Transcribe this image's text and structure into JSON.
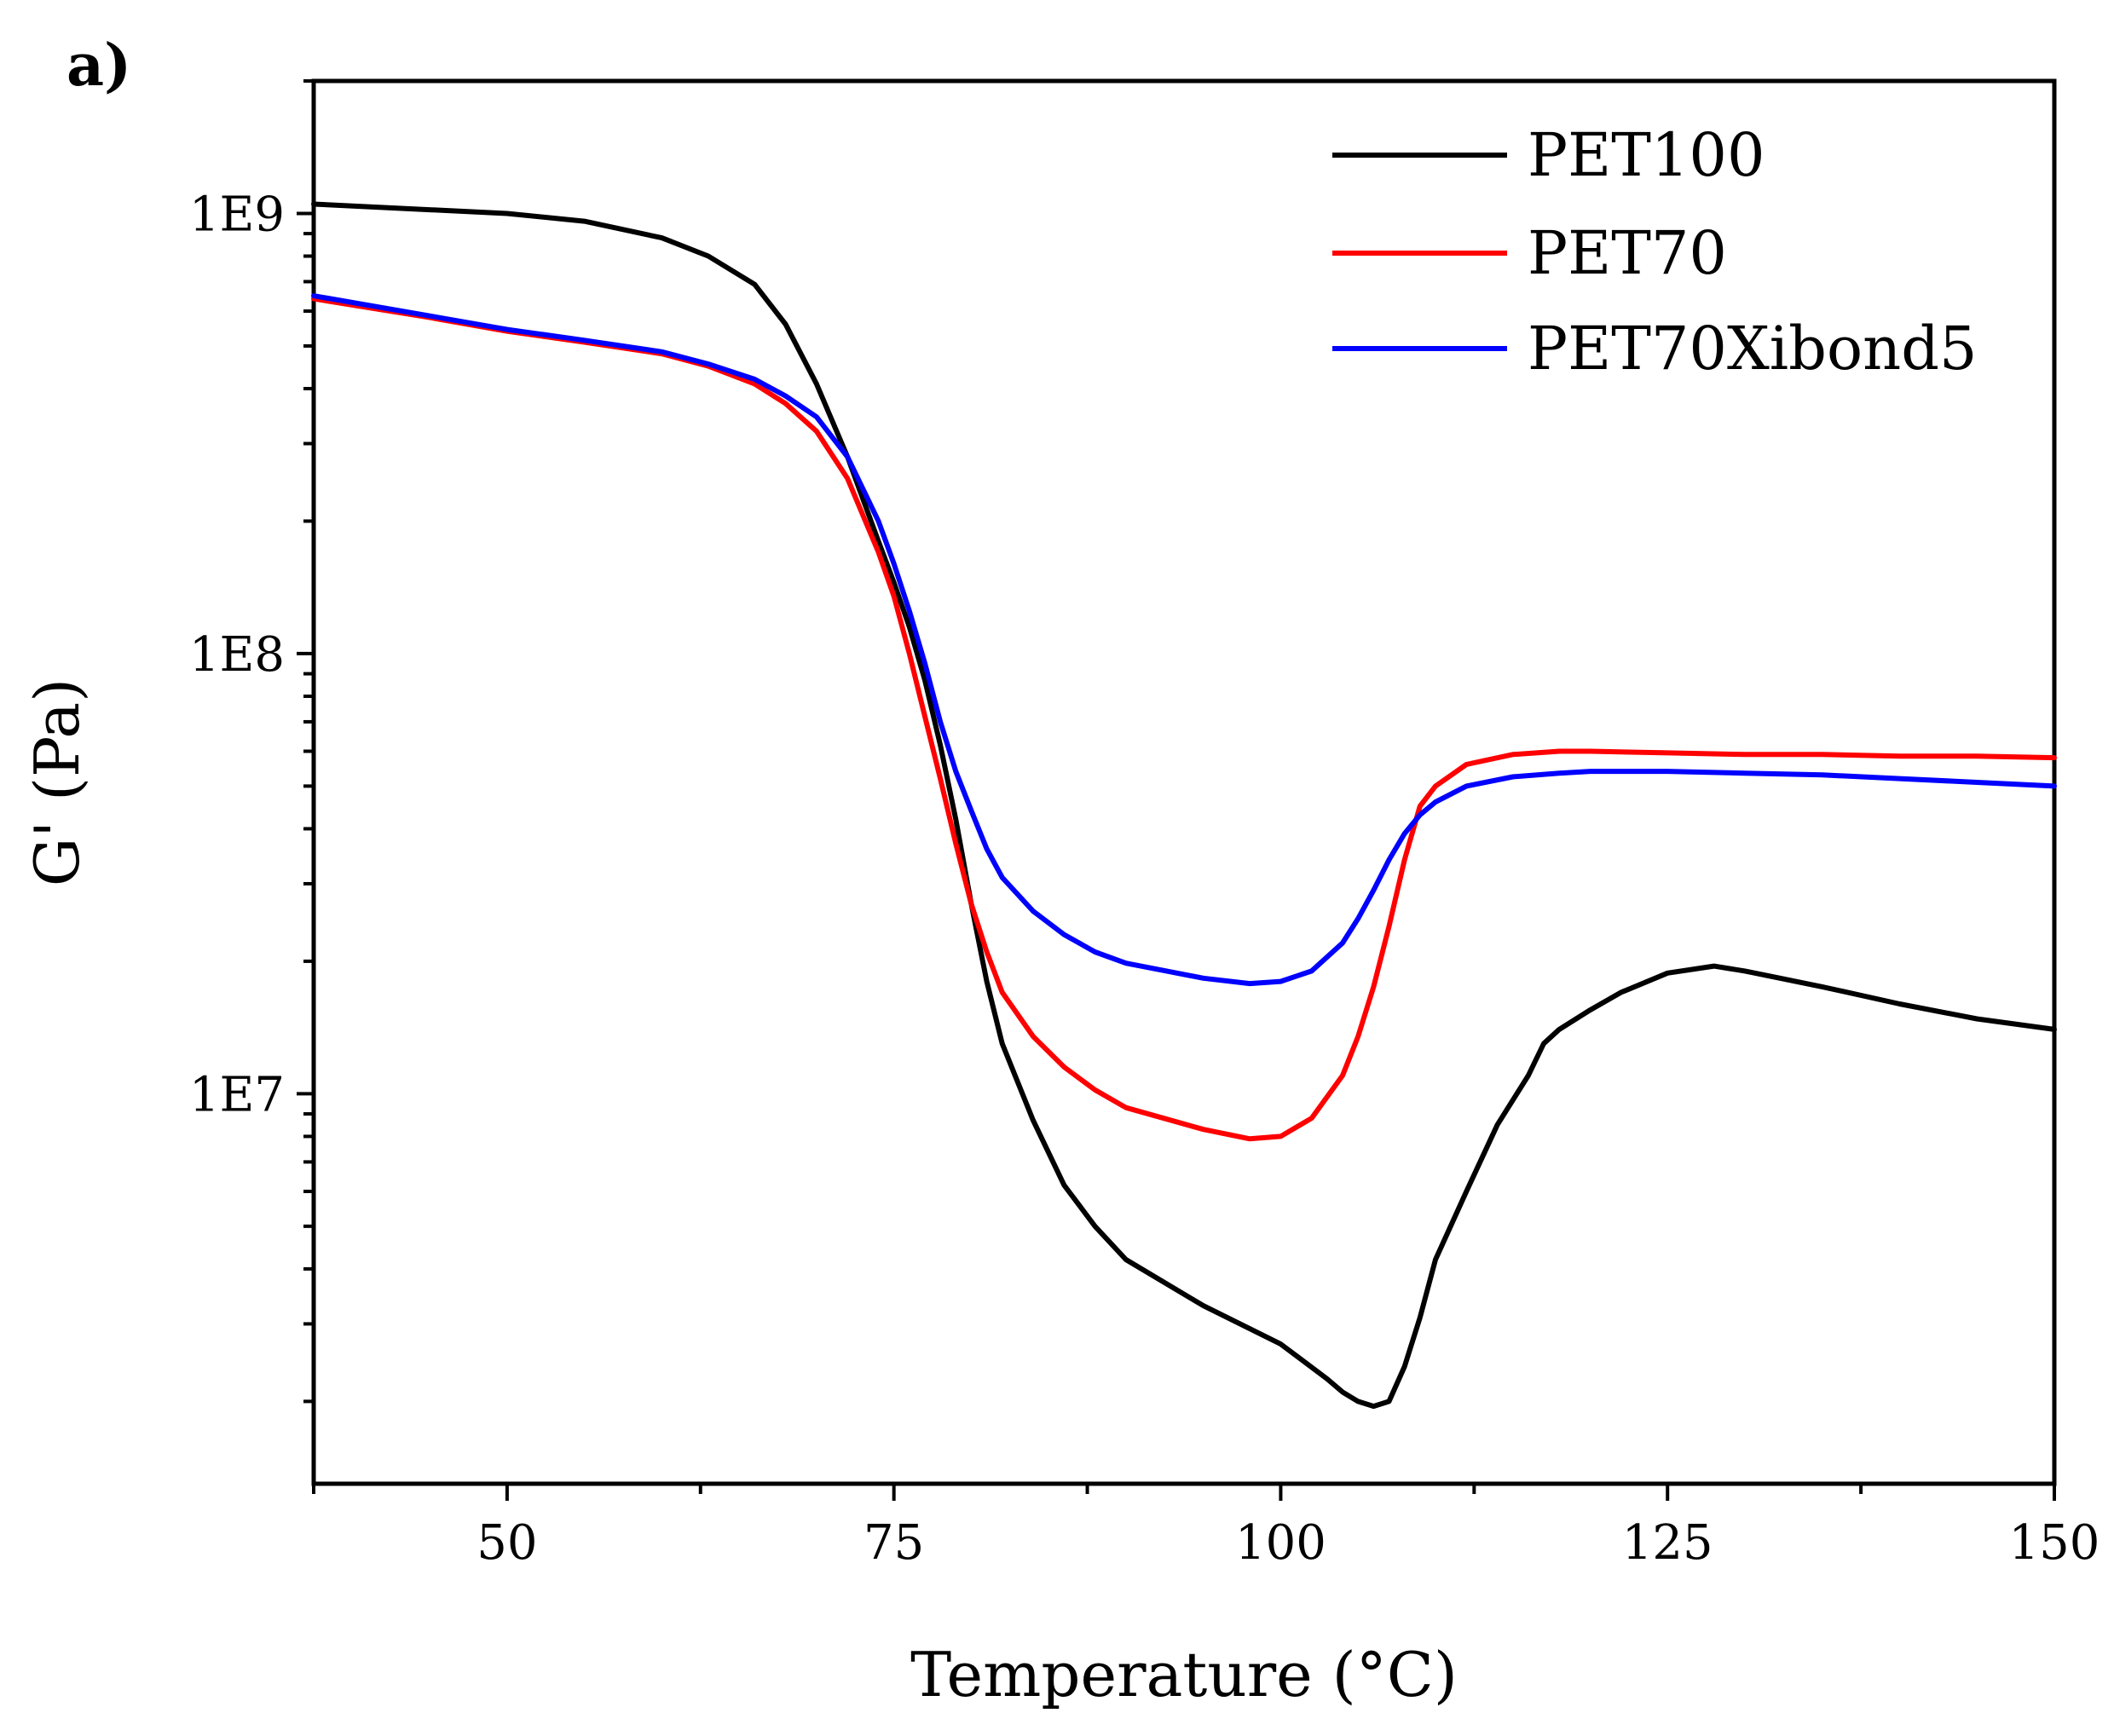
{
  "chart_data": {
    "type": "line",
    "panel_label": "a)",
    "title": "",
    "xlabel": "Temperature (°C)",
    "ylabel": "G' (Pa)",
    "yscale": "log",
    "xlim": [
      37.5,
      150
    ],
    "ylim": [
      1300000,
      2000000000
    ],
    "xticks": [
      50,
      75,
      100,
      125,
      150
    ],
    "xtick_labels": [
      "50",
      "75",
      "100",
      "125",
      "150"
    ],
    "yticks": [
      10000000,
      100000000,
      1000000000
    ],
    "ytick_labels": [
      "1E7",
      "1E8",
      "1E9"
    ],
    "grid": false,
    "legend_position": "top-right",
    "series": [
      {
        "name": "PET100",
        "color": "#000000",
        "x": [
          37.5,
          50,
          55,
          60,
          63,
          66,
          68,
          70,
          72,
          74,
          75,
          76,
          77,
          78,
          79,
          80,
          81,
          82,
          84,
          86,
          88,
          90,
          95,
          100,
          103,
          104,
          105,
          106,
          107,
          108,
          109,
          110,
          112,
          114,
          116,
          117,
          118,
          120,
          122,
          125,
          128,
          130,
          135,
          140,
          145,
          150
        ],
        "y": [
          1050000000,
          1000000000,
          960000000,
          880000000,
          800000000,
          690000000,
          560000000,
          410000000,
          280000000,
          180000000,
          145000000,
          115000000,
          87000000,
          62000000,
          42000000,
          27000000,
          18000000,
          13000000,
          8700000,
          6200000,
          5000000,
          4200000,
          3300000,
          2700000,
          2250000,
          2100000,
          2000000,
          1950000,
          2000000,
          2400000,
          3100000,
          4200000,
          6000000,
          8500000,
          11000000,
          13000000,
          14000000,
          15500000,
          17000000,
          18800000,
          19500000,
          19000000,
          17500000,
          16000000,
          14800000,
          14000000
        ]
      },
      {
        "name": "PET70",
        "color": "#ff0000",
        "x": [
          37.5,
          45,
          50,
          55,
          60,
          63,
          66,
          68,
          70,
          72,
          74,
          75,
          76,
          77,
          78,
          79,
          80,
          81,
          82,
          84,
          86,
          88,
          90,
          95,
          98,
          100,
          102,
          104,
          105,
          106,
          107,
          108,
          109,
          110,
          112,
          115,
          118,
          120,
          125,
          130,
          135,
          140,
          145,
          150
        ],
        "y": [
          640000000,
          580000000,
          540000000,
          510000000,
          480000000,
          450000000,
          410000000,
          370000000,
          320000000,
          250000000,
          170000000,
          135000000,
          100000000,
          72000000,
          52000000,
          37000000,
          27000000,
          21000000,
          17000000,
          13500000,
          11500000,
          10200000,
          9300000,
          8300000,
          7900000,
          8000000,
          8800000,
          11000000,
          13500000,
          17500000,
          24000000,
          34000000,
          45000000,
          50000000,
          56000000,
          59000000,
          60000000,
          60000000,
          59500000,
          59000000,
          59000000,
          58500000,
          58500000,
          58000000
        ]
      },
      {
        "name": "PET70Xibond5",
        "color": "#0000ff",
        "x": [
          37.5,
          45,
          50,
          55,
          60,
          63,
          66,
          68,
          70,
          72,
          74,
          75,
          76,
          77,
          78,
          79,
          80,
          81,
          82,
          84,
          86,
          88,
          90,
          95,
          98,
          100,
          102,
          104,
          105,
          106,
          107,
          108,
          109,
          110,
          112,
          115,
          118,
          120,
          125,
          130,
          135,
          140,
          145,
          150
        ],
        "y": [
          650000000,
          585000000,
          545000000,
          515000000,
          485000000,
          455000000,
          420000000,
          385000000,
          345000000,
          280000000,
          200000000,
          160000000,
          125000000,
          95000000,
          70000000,
          54000000,
          44000000,
          36000000,
          31000000,
          26000000,
          23000000,
          21000000,
          19800000,
          18300000,
          17800000,
          18000000,
          19000000,
          22000000,
          25000000,
          29000000,
          34000000,
          39000000,
          43000000,
          46000000,
          50000000,
          52500000,
          53500000,
          54000000,
          54000000,
          53500000,
          53000000,
          52000000,
          51000000,
          50000000
        ]
      }
    ]
  }
}
